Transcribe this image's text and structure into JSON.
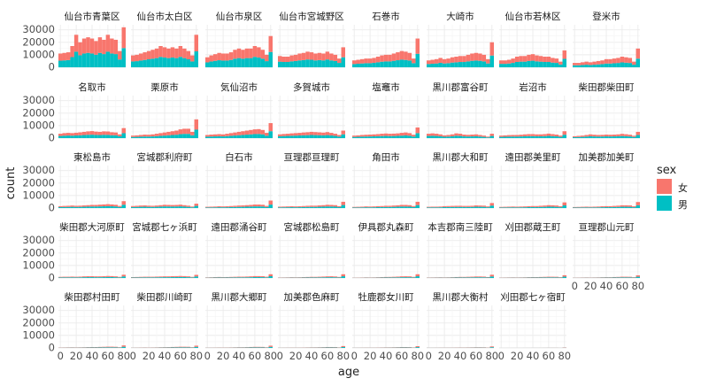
{
  "chart_data": {
    "type": "bar",
    "layout": "facet_wrap",
    "stacking": "stacked",
    "xlabel": "age",
    "ylabel": "count",
    "x_ticks": [
      0,
      20,
      40,
      60,
      80
    ],
    "y_ticks": [
      0,
      10000,
      20000,
      30000
    ],
    "x_range": [
      -2.5,
      82.5
    ],
    "y_range": [
      0,
      34000
    ],
    "x": [
      0,
      5,
      10,
      15,
      20,
      25,
      30,
      35,
      40,
      45,
      50,
      55,
      60,
      65,
      70,
      75,
      80
    ],
    "grid": true,
    "legend": {
      "title": "sex",
      "placement": "right",
      "entries": [
        {
          "label": "女",
          "color": "#F8766D"
        },
        {
          "label": "男",
          "color": "#00BFC4"
        }
      ]
    },
    "series_colors": {
      "female": "#F8766D",
      "male": "#00BFC4"
    },
    "panels": [
      {
        "name": "仙台市青葉区",
        "total": [
          11000,
          11500,
          12000,
          17000,
          26000,
          20000,
          23000,
          24000,
          23000,
          21000,
          24000,
          22000,
          26000,
          23000,
          22000,
          13000,
          32000
        ],
        "male_share": 0.48
      },
      {
        "name": "仙台市太白区",
        "total": [
          9500,
          10000,
          11000,
          12000,
          13000,
          14000,
          15000,
          17000,
          16000,
          15000,
          16000,
          15000,
          17000,
          15000,
          13000,
          9500,
          26000
        ],
        "male_share": 0.49
      },
      {
        "name": "仙台市泉区",
        "total": [
          8000,
          9500,
          10500,
          11500,
          11000,
          11000,
          12000,
          14000,
          15000,
          14000,
          15000,
          15000,
          17000,
          16000,
          14000,
          10000,
          25000
        ],
        "male_share": 0.49
      },
      {
        "name": "仙台市宮城野区",
        "total": [
          9000,
          8500,
          8500,
          9500,
          10000,
          11000,
          11500,
          12500,
          12000,
          11000,
          11500,
          11000,
          12500,
          11000,
          10000,
          7000,
          16000
        ],
        "male_share": 0.5
      },
      {
        "name": "石巻市",
        "total": [
          5500,
          6000,
          6500,
          7000,
          7000,
          7500,
          8500,
          9500,
          10000,
          10000,
          11000,
          12000,
          13000,
          12500,
          11500,
          7000,
          23000
        ],
        "male_share": 0.47
      },
      {
        "name": "大崎市",
        "total": [
          5500,
          6000,
          6500,
          7500,
          6500,
          7000,
          8000,
          8500,
          9000,
          9000,
          10000,
          11000,
          11500,
          11000,
          10000,
          6500,
          20000
        ],
        "male_share": 0.47
      },
      {
        "name": "仙台市若林区",
        "total": [
          5500,
          5500,
          6000,
          7000,
          8500,
          9000,
          9000,
          10000,
          10500,
          9500,
          9000,
          8500,
          8500,
          7500,
          7000,
          4500,
          13500
        ],
        "male_share": 0.5
      },
      {
        "name": "登米市",
        "total": [
          3500,
          3500,
          4000,
          4500,
          4000,
          4500,
          5000,
          5500,
          6500,
          6500,
          7000,
          7500,
          8500,
          8000,
          7500,
          4500,
          15000
        ],
        "male_share": 0.46
      },
      {
        "name": "名取市",
        "total": [
          3500,
          4000,
          4200,
          4000,
          4300,
          4600,
          5000,
          5400,
          5600,
          5200,
          5000,
          5400,
          5300,
          4700,
          4500,
          3000,
          8000
        ],
        "male_share": 0.49
      },
      {
        "name": "栗原市",
        "total": [
          2000,
          2200,
          2500,
          2800,
          2700,
          3000,
          3500,
          4000,
          4500,
          5000,
          5500,
          6000,
          7000,
          7500,
          7500,
          5000,
          15000
        ],
        "male_share": 0.45
      },
      {
        "name": "気仙沼市",
        "total": [
          2500,
          2800,
          3000,
          3200,
          3000,
          3500,
          4000,
          4500,
          5000,
          5500,
          6000,
          6500,
          7000,
          7200,
          6500,
          4200,
          12000
        ],
        "male_share": 0.46
      },
      {
        "name": "多賀城市",
        "total": [
          3000,
          3300,
          3500,
          3800,
          4000,
          4200,
          4500,
          4700,
          5000,
          4800,
          4600,
          4400,
          4800,
          4200,
          3500,
          2500,
          6000
        ],
        "male_share": 0.5
      },
      {
        "name": "塩竈市",
        "total": [
          2000,
          2200,
          2500,
          2700,
          2800,
          3000,
          3200,
          3500,
          3700,
          3500,
          3600,
          3800,
          4200,
          4500,
          4000,
          2700,
          8500
        ],
        "male_share": 0.47
      },
      {
        "name": "黒川郡富谷町",
        "total": [
          3500,
          3800,
          3500,
          3000,
          2200,
          2500,
          3000,
          3800,
          3500,
          2800,
          2600,
          2800,
          3000,
          2500,
          2000,
          1200,
          3500
        ],
        "male_share": 0.49
      },
      {
        "name": "岩沼市",
        "total": [
          2000,
          2200,
          2400,
          2500,
          2500,
          2700,
          3000,
          3200,
          3200,
          3000,
          3000,
          3200,
          3600,
          3200,
          2800,
          2000,
          5500
        ],
        "male_share": 0.49
      },
      {
        "name": "柴田郡柴田町",
        "total": [
          1500,
          1800,
          2000,
          2500,
          3000,
          2700,
          2500,
          2600,
          2800,
          2700,
          2800,
          3000,
          3400,
          3100,
          2700,
          1900,
          5000
        ],
        "male_share": 0.49
      },
      {
        "name": "東松島市",
        "total": [
          1500,
          1700,
          1800,
          2000,
          1800,
          1900,
          2100,
          2300,
          2500,
          2500,
          2700,
          2900,
          3100,
          2900,
          2600,
          1700,
          5500
        ],
        "male_share": 0.48
      },
      {
        "name": "宮城郡利府町",
        "total": [
          1600,
          1800,
          2000,
          2100,
          1900,
          1800,
          2000,
          2300,
          2600,
          2500,
          2400,
          2500,
          2700,
          2300,
          1900,
          1200,
          3500
        ],
        "male_share": 0.49
      },
      {
        "name": "白石市",
        "total": [
          1000,
          1100,
          1200,
          1400,
          1300,
          1400,
          1600,
          1800,
          2000,
          2100,
          2300,
          2500,
          2800,
          2800,
          2600,
          1700,
          6000
        ],
        "male_share": 0.46
      },
      {
        "name": "亘理郡亘理町",
        "total": [
          1100,
          1200,
          1300,
          1400,
          1300,
          1400,
          1600,
          1800,
          1900,
          1900,
          2100,
          2300,
          2600,
          2500,
          2300,
          1500,
          5000
        ],
        "male_share": 0.48
      },
      {
        "name": "角田市",
        "total": [
          900,
          1000,
          1100,
          1300,
          1200,
          1300,
          1500,
          1600,
          1800,
          1800,
          2000,
          2200,
          2500,
          2500,
          2300,
          1600,
          5000
        ],
        "male_share": 0.47
      },
      {
        "name": "黒川郡大和町",
        "total": [
          1000,
          1100,
          1100,
          1200,
          1500,
          1600,
          1700,
          1800,
          1800,
          1700,
          1700,
          1800,
          2100,
          2000,
          1900,
          1300,
          4000
        ],
        "male_share": 0.49
      },
      {
        "name": "遠田郡美里町",
        "total": [
          900,
          1000,
          1100,
          1200,
          1100,
          1200,
          1300,
          1500,
          1600,
          1600,
          1800,
          2000,
          2300,
          2200,
          2000,
          1400,
          4500
        ],
        "male_share": 0.47
      },
      {
        "name": "加美郡加美町",
        "total": [
          800,
          900,
          1000,
          1100,
          1000,
          1100,
          1200,
          1400,
          1500,
          1500,
          1700,
          1900,
          2200,
          2200,
          2100,
          1400,
          4800
        ],
        "male_share": 0.46
      },
      {
        "name": "柴田郡大河原町",
        "total": [
          900,
          1000,
          1000,
          1100,
          1000,
          1100,
          1300,
          1400,
          1400,
          1300,
          1300,
          1400,
          1600,
          1500,
          1300,
          900,
          2600
        ],
        "male_share": 0.48
      },
      {
        "name": "宮城郡七ヶ浜町",
        "total": [
          700,
          800,
          900,
          1000,
          1000,
          1000,
          1100,
          1200,
          1300,
          1300,
          1400,
          1500,
          1600,
          1500,
          1300,
          900,
          2500
        ],
        "male_share": 0.49
      },
      {
        "name": "遠田郡涌谷町",
        "total": [
          500,
          600,
          700,
          800,
          700,
          750,
          850,
          950,
          1050,
          1050,
          1150,
          1300,
          1500,
          1500,
          1400,
          1000,
          3000
        ],
        "male_share": 0.47
      },
      {
        "name": "宮城郡松島町",
        "total": [
          400,
          450,
          500,
          600,
          550,
          600,
          700,
          800,
          900,
          900,
          1000,
          1150,
          1300,
          1350,
          1200,
          850,
          3000
        ],
        "male_share": 0.46
      },
      {
        "name": "伊具郡丸森町",
        "total": [
          300,
          350,
          400,
          500,
          450,
          500,
          600,
          700,
          800,
          850,
          950,
          1100,
          1300,
          1350,
          1300,
          900,
          3000
        ],
        "male_share": 0.46
      },
      {
        "name": "本吉郡南三陸町",
        "total": [
          400,
          450,
          500,
          550,
          500,
          550,
          650,
          750,
          850,
          850,
          950,
          1050,
          1200,
          1200,
          1100,
          750,
          2600
        ],
        "male_share": 0.47
      },
      {
        "name": "刈田郡蔵王町",
        "total": [
          350,
          400,
          450,
          500,
          450,
          500,
          550,
          650,
          700,
          700,
          800,
          900,
          1000,
          1000,
          950,
          650,
          2200
        ],
        "male_share": 0.47
      },
      {
        "name": "亘理郡山元町",
        "total": [
          300,
          350,
          400,
          450,
          400,
          450,
          500,
          600,
          650,
          650,
          750,
          850,
          1000,
          1000,
          950,
          650,
          2100
        ],
        "male_share": 0.47
      },
      {
        "name": "柴田郡村田町",
        "total": [
          350,
          400,
          450,
          500,
          450,
          500,
          550,
          650,
          700,
          700,
          800,
          900,
          1000,
          1000,
          900,
          600,
          2000
        ],
        "male_share": 0.47
      },
      {
        "name": "柴田郡川崎町",
        "total": [
          250,
          300,
          350,
          400,
          350,
          400,
          450,
          550,
          600,
          650,
          750,
          850,
          950,
          950,
          900,
          600,
          1800
        ],
        "male_share": 0.47
      },
      {
        "name": "黒川郡大郷町",
        "total": [
          250,
          280,
          320,
          380,
          350,
          380,
          420,
          500,
          560,
          580,
          650,
          750,
          850,
          850,
          800,
          550,
          1800
        ],
        "male_share": 0.47
      },
      {
        "name": "加美郡色麻町",
        "total": [
          220,
          250,
          280,
          320,
          300,
          320,
          360,
          420,
          470,
          490,
          550,
          630,
          720,
          720,
          680,
          460,
          1500
        ],
        "male_share": 0.47
      },
      {
        "name": "牡鹿郡女川町",
        "total": [
          200,
          230,
          260,
          300,
          280,
          300,
          340,
          400,
          450,
          470,
          530,
          600,
          690,
          690,
          650,
          440,
          1400
        ],
        "male_share": 0.47
      },
      {
        "name": "黒川郡大衡村",
        "total": [
          180,
          200,
          230,
          260,
          250,
          270,
          300,
          350,
          380,
          380,
          420,
          470,
          540,
          540,
          510,
          350,
          1200
        ],
        "male_share": 0.47
      },
      {
        "name": "刈田郡七ヶ宿町",
        "total": [
          40,
          45,
          50,
          60,
          55,
          60,
          70,
          80,
          90,
          100,
          115,
          130,
          150,
          160,
          160,
          110,
          400
        ],
        "male_share": 0.45
      }
    ]
  }
}
